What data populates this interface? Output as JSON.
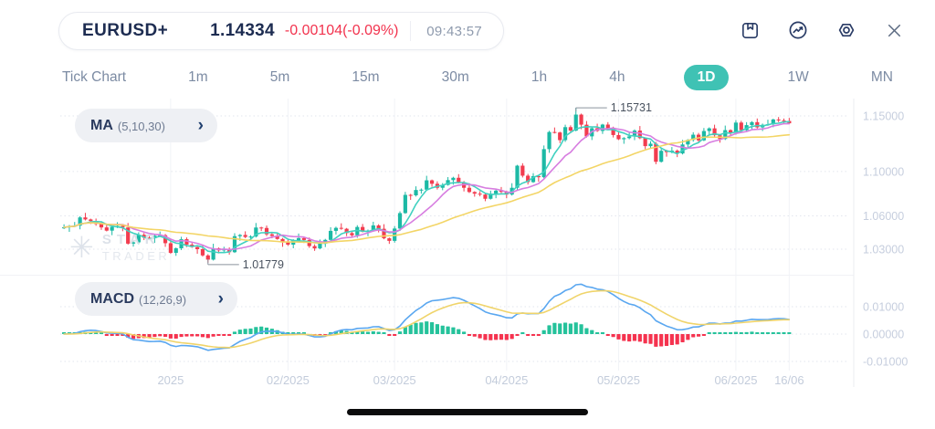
{
  "header": {
    "symbol": "EURUSD+",
    "price": "1.14334",
    "change": "-0.00104(-0.09%)",
    "time": "09:43:57"
  },
  "timeframes": {
    "items": [
      "Tick Chart",
      "1m",
      "5m",
      "15m",
      "30m",
      "1h",
      "4h",
      "1D",
      "1W",
      "MN"
    ],
    "selected": "1D"
  },
  "indicators": {
    "ma": {
      "name": "MA",
      "params": "(5,10,30)"
    },
    "macd": {
      "name": "MACD",
      "params": "(12,26,9)"
    }
  },
  "watermark": {
    "line1": "STAR",
    "line2": "TRADER"
  },
  "colors": {
    "accent_teal": "#3fc2b4",
    "navy": "#1d2c51",
    "change_red": "#f2334e",
    "candle_up": "#1cb9a5",
    "candle_down": "#f23c4f",
    "ma5": "#40d1c0",
    "ma10": "#d77ee0",
    "ma30": "#f3d566",
    "macd_line": "#5aa7f0",
    "macd_signal": "#f0d46a",
    "hist_up": "#25c29b",
    "hist_down": "#f5334f",
    "grid": "#e2e6ee",
    "axis_label": "#c6cede"
  },
  "chart_data": {
    "type": "candlestick+macd",
    "symbol": "EURUSD",
    "timeframe": "1D",
    "first_open": 1.0488,
    "closes": [
      1.0497,
      1.0509,
      1.0512,
      1.0586,
      1.0568,
      1.0554,
      1.0527,
      1.0496,
      1.0467,
      1.0501,
      1.051,
      1.0495,
      1.035,
      1.0362,
      1.043,
      1.0404,
      1.0398,
      1.0422,
      1.0426,
      1.0354,
      1.0267,
      1.0308,
      1.039,
      1.0341,
      1.0319,
      1.03,
      1.0244,
      1.0206,
      1.0308,
      1.0289,
      1.03,
      1.0273,
      1.0417,
      1.0428,
      1.041,
      1.0414,
      1.0495,
      1.0491,
      1.0434,
      1.042,
      1.0392,
      1.0362,
      1.0341,
      1.0379,
      1.04,
      1.0383,
      1.0328,
      1.0307,
      1.036,
      1.0384,
      1.0465,
      1.0492,
      1.0484,
      1.0445,
      1.0425,
      1.05,
      1.0458,
      1.0468,
      1.0514,
      1.0484,
      1.0398,
      1.0375,
      1.0486,
      1.0625,
      1.0789,
      1.0785,
      1.0833,
      1.0836,
      1.092,
      1.0889,
      1.0853,
      1.0879,
      1.0922,
      1.0943,
      1.0903,
      1.0853,
      1.0815,
      1.08,
      1.0792,
      1.0754,
      1.08,
      1.0827,
      1.0816,
      1.0792,
      1.0853,
      1.1052,
      1.0962,
      1.0904,
      1.0958,
      1.0948,
      1.1201,
      1.1355,
      1.1351,
      1.1282,
      1.1399,
      1.1368,
      1.1512,
      1.1421,
      1.1316,
      1.1389,
      1.1365,
      1.1422,
      1.1387,
      1.1328,
      1.129,
      1.13,
      1.1315,
      1.1368,
      1.13,
      1.1228,
      1.125,
      1.1087,
      1.1186,
      1.1174,
      1.1187,
      1.1162,
      1.1243,
      1.1284,
      1.1331,
      1.128,
      1.1364,
      1.1388,
      1.1326,
      1.1292,
      1.1372,
      1.1347,
      1.144,
      1.1372,
      1.1417,
      1.1444,
      1.1397,
      1.142,
      1.1425,
      1.1468,
      1.146,
      1.1455,
      1.14334
    ],
    "wick_pattern": [
      0.0011,
      0.0027,
      0.0007,
      0.0033,
      0.0016,
      0.0041,
      0.0009,
      0.0022
    ],
    "annotations": {
      "high": {
        "label": "1.15731",
        "value": 1.15731,
        "index": 96
      },
      "low": {
        "label": "1.01779",
        "value": 1.01779,
        "index": 27
      }
    },
    "moving_averages": [
      {
        "period": 5
      },
      {
        "period": 10
      },
      {
        "period": 30
      }
    ],
    "macd": {
      "fast": 12,
      "slow": 26,
      "signal": 9
    },
    "y_axis_main": {
      "ticks": [
        {
          "label": "1.15000",
          "value": 1.15
        },
        {
          "label": "1.10000",
          "value": 1.1
        },
        {
          "label": "1.06000",
          "value": 1.06
        },
        {
          "label": "1.03000",
          "value": 1.03
        }
      ]
    },
    "y_axis_macd": {
      "ticks": [
        {
          "label": "0.01000",
          "value": 0.01
        },
        {
          "label": "0.00000",
          "value": 0.0
        },
        {
          "label": "-0.01000",
          "value": -0.01
        }
      ]
    },
    "x_axis": {
      "labels": [
        {
          "text": "2025",
          "index": 20
        },
        {
          "text": "02/2025",
          "index": 42
        },
        {
          "text": "03/2025",
          "index": 62
        },
        {
          "text": "04/2025",
          "index": 83
        },
        {
          "text": "05/2025",
          "index": 104
        },
        {
          "text": "06/2025",
          "index": 126
        },
        {
          "text": "16/06",
          "index": 136
        }
      ]
    }
  }
}
